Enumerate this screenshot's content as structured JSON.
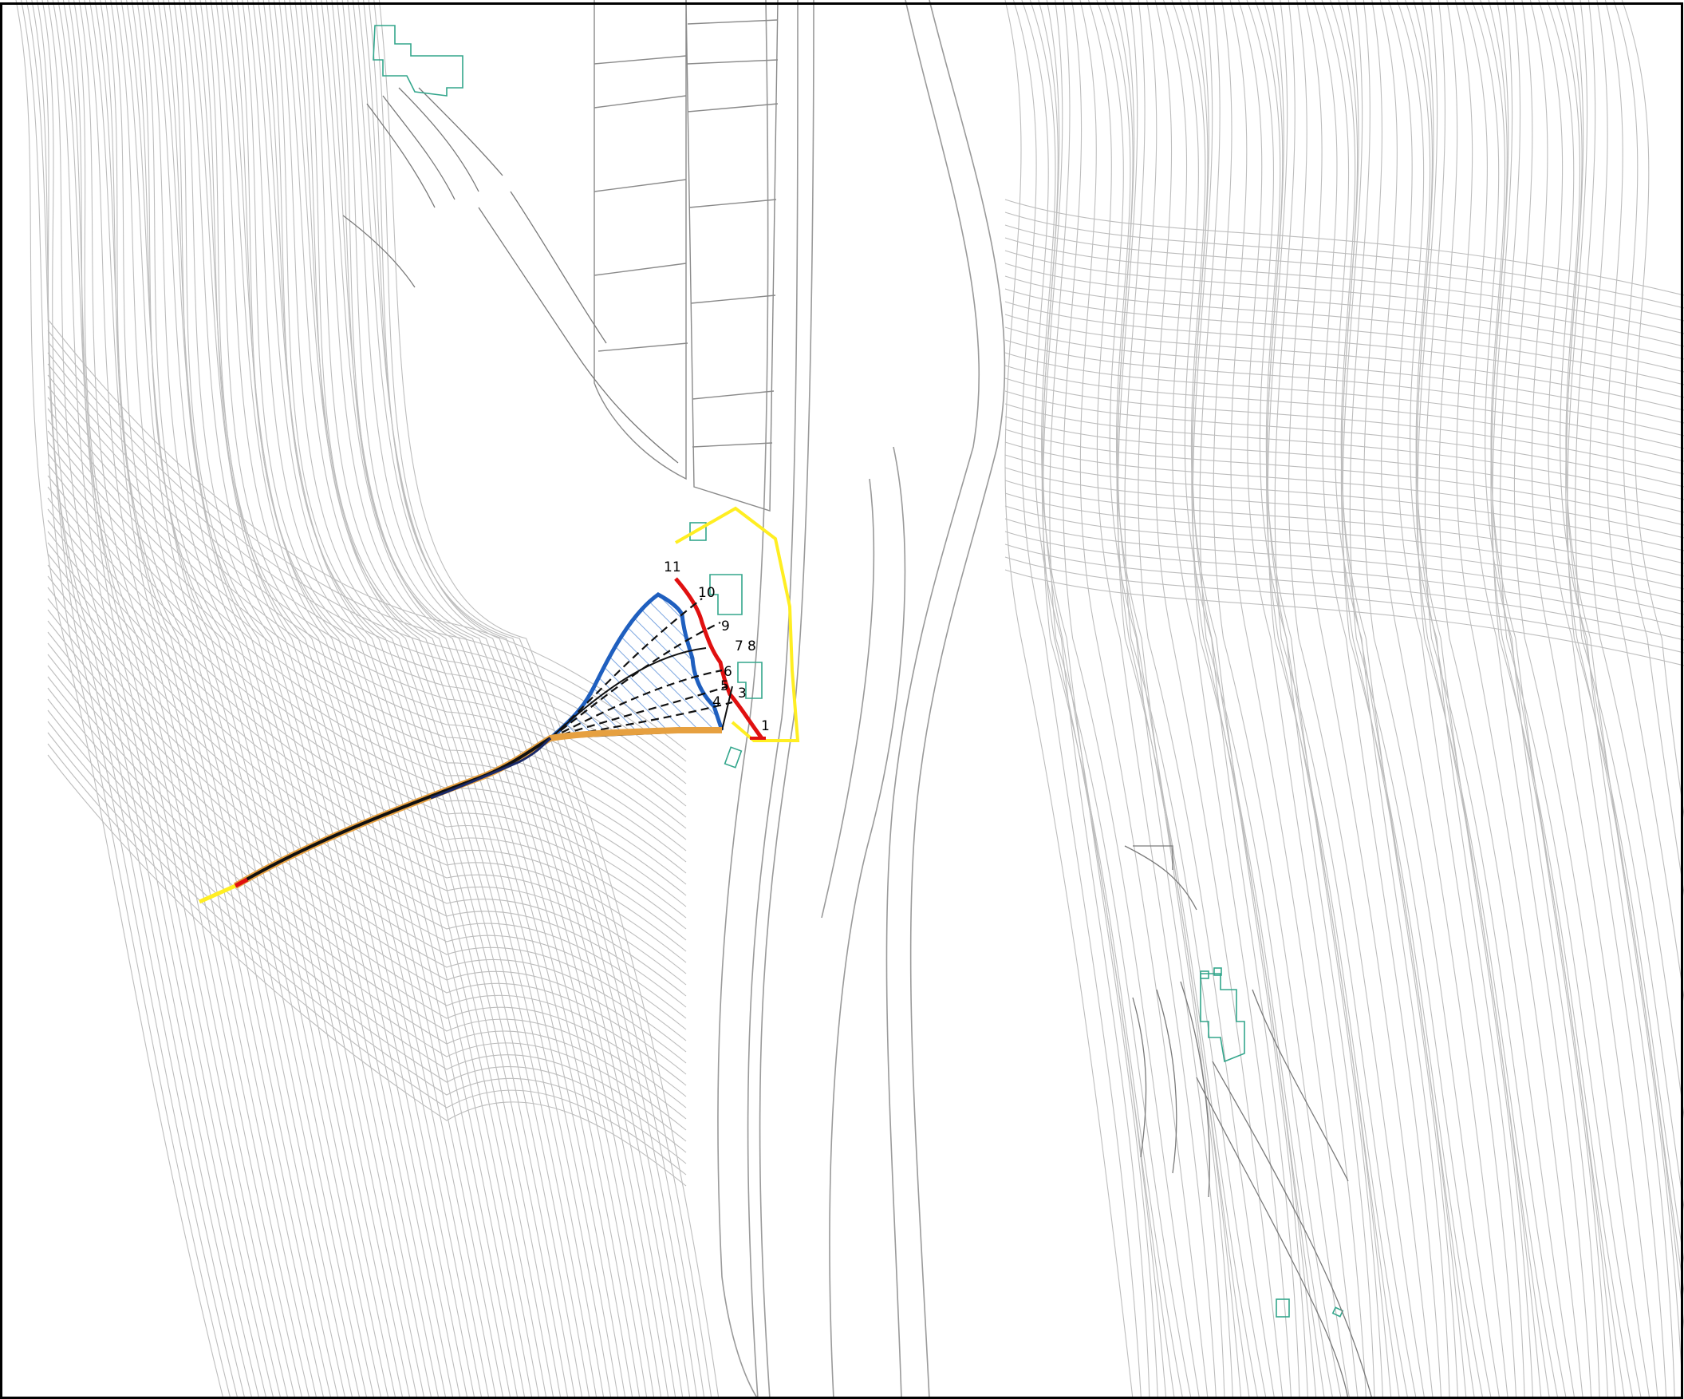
{
  "map": {
    "colors": {
      "background": "#ffffff",
      "frame": "#000000",
      "contour": "#bdbdbd",
      "road": "#9a9a9a",
      "building": "#33a68c",
      "outline_yellow": "#ffee22",
      "outline_red": "#e01010",
      "outline_blue": "#1f5fbf",
      "hatch": "#5a8fd8",
      "channel": "#101010",
      "orange": "#e6a040"
    },
    "section_labels": [
      "1",
      "3",
      "4",
      "5",
      "6",
      "7",
      "8",
      "9",
      "10",
      "11"
    ]
  }
}
